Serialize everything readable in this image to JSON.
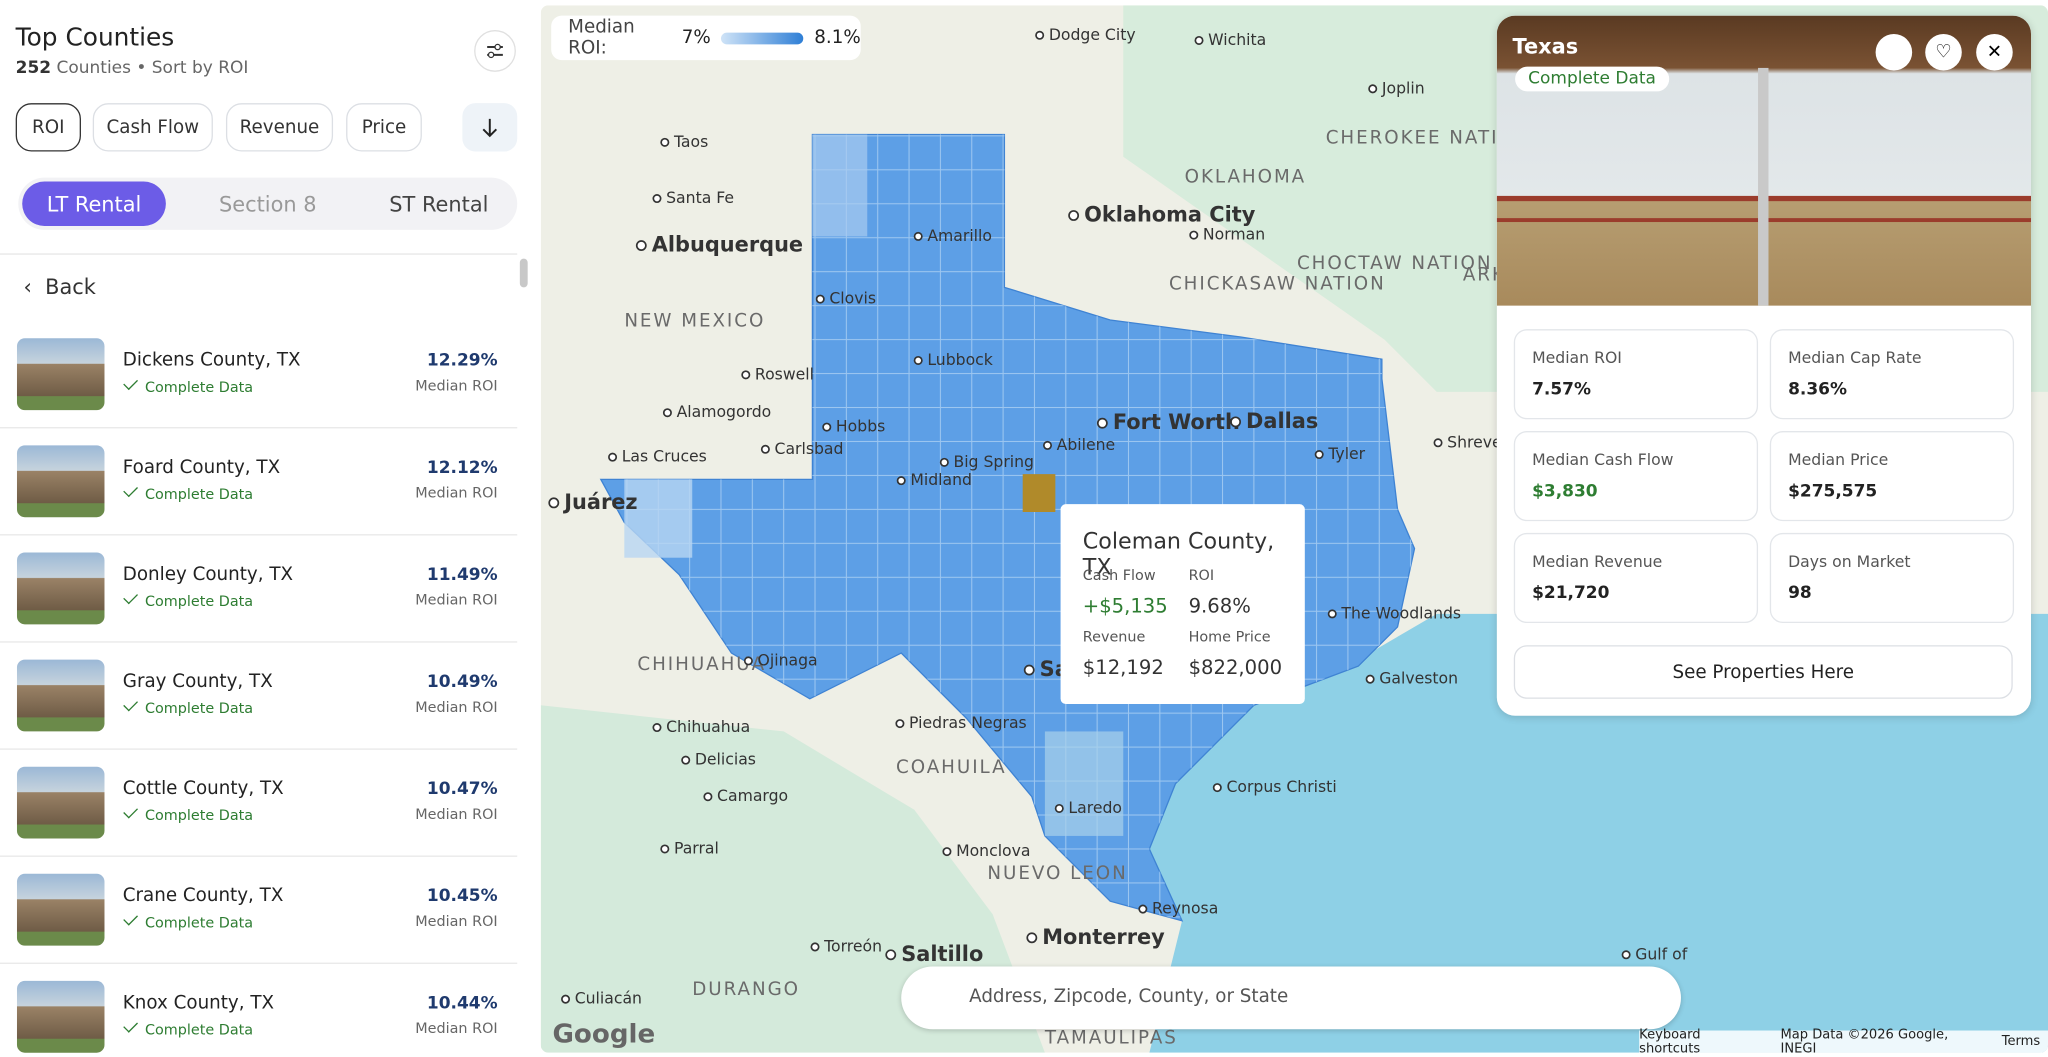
{
  "sidebar": {
    "title": "Top Counties",
    "count": "252",
    "subtitle": "Counties • Sort by ROI",
    "sort_tabs": [
      "ROI",
      "Cash Flow",
      "Revenue",
      "Price"
    ],
    "rental_tabs": [
      "LT Rental",
      "Section 8",
      "ST Rental"
    ],
    "back": "Back",
    "counties": [
      {
        "name": "Dickens County, TX",
        "status": "Complete Data",
        "roi": "12.29%",
        "roi_label": "Median ROI"
      },
      {
        "name": "Foard County, TX",
        "status": "Complete Data",
        "roi": "12.12%",
        "roi_label": "Median ROI"
      },
      {
        "name": "Donley County, TX",
        "status": "Complete Data",
        "roi": "11.49%",
        "roi_label": "Median ROI"
      },
      {
        "name": "Gray County, TX",
        "status": "Complete Data",
        "roi": "10.49%",
        "roi_label": "Median ROI"
      },
      {
        "name": "Cottle County, TX",
        "status": "Complete Data",
        "roi": "10.47%",
        "roi_label": "Median ROI"
      },
      {
        "name": "Crane County, TX",
        "status": "Complete Data",
        "roi": "10.45%",
        "roi_label": "Median ROI"
      },
      {
        "name": "Knox County, TX",
        "status": "Complete Data",
        "roi": "10.44%",
        "roi_label": "Median ROI"
      }
    ]
  },
  "map": {
    "legend": {
      "label": "Median ROI:",
      "min": "7%",
      "max": "8.1%"
    },
    "places": [
      "Dodge City",
      "Wichita",
      "Joplin",
      "Taos",
      "Santa Fe",
      "Albuquerque",
      "Amarillo",
      "Clovis",
      "Lubbock",
      "Roswell",
      "NEW MEXICO",
      "Alamogordo",
      "Hobbs",
      "Carlsbad",
      "Las Cruces",
      "Big Spring",
      "Midland",
      "Abilene",
      "OKLAHOMA",
      "Oklahoma City",
      "Norman",
      "CHICKASAW NATION",
      "CHOCTAW NATION",
      "CHEROKEE NATION",
      "ARKAN",
      "Fort Worth",
      "Dallas",
      "Tyler",
      "Shreveport",
      "Juárez",
      "CHIHUAHUA",
      "Ojinaga",
      "Chihuahua",
      "Delicias",
      "Camargo",
      "Parral",
      "Piedras Negras",
      "COAHUILA",
      "San Antonio",
      "The Woodlands",
      "Galveston",
      "Corpus Christi",
      "Laredo",
      "Monclova",
      "NUEVO LEON",
      "Reynosa",
      "Monterrey",
      "Saltillo",
      "Torreón",
      "DURANGO",
      "Culiacán",
      "Gulf of",
      "TAMAULIPAS"
    ],
    "tooltip": {
      "title": "Coleman County, TX",
      "fields": [
        {
          "label": "Cash Flow",
          "value": "+$5,135"
        },
        {
          "label": "ROI",
          "value": "9.68%"
        },
        {
          "label": "Revenue",
          "value": "$12,192"
        },
        {
          "label": "Home Price",
          "value": "$822,000"
        }
      ]
    },
    "search_placeholder": "Address, Zipcode, County, or State",
    "logo": "Google",
    "footer": [
      "Keyboard shortcuts",
      "Map Data ©2026 Google, INEGI",
      "Terms"
    ]
  },
  "panel": {
    "title": "Texas",
    "status": "Complete Data",
    "stats": [
      {
        "label": "Median ROI",
        "value": "7.57%"
      },
      {
        "label": "Median Cap Rate",
        "value": "8.36%"
      },
      {
        "label": "Median Cash Flow",
        "value": "$3,830"
      },
      {
        "label": "Median Price",
        "value": "$275,575"
      },
      {
        "label": "Median Revenue",
        "value": "$21,720"
      },
      {
        "label": "Days on Market",
        "value": "98"
      }
    ],
    "button": "See Properties Here"
  }
}
